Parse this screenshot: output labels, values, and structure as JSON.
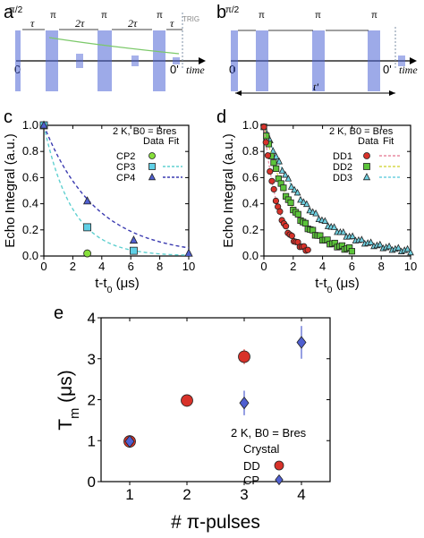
{
  "panels": {
    "a": {
      "letter": "a",
      "pulse_labels": [
        "π/2",
        "π",
        "π",
        "π"
      ],
      "delay_labels": [
        "τ",
        "2τ",
        "2τ",
        "τ"
      ],
      "zero": "0",
      "zero_prime": "0'",
      "time": "time",
      "trig": "TRIG"
    },
    "b": {
      "letter": "b",
      "pulse_labels": [
        "π/2",
        "π",
        "π",
        "π"
      ],
      "zero": "0",
      "zero_prime": "0'",
      "time": "time",
      "tprime": "t'"
    }
  },
  "colors": {
    "pulse": "#4d63d6",
    "cp": "#5fd0d0",
    "cp_fit": "#3a3ab0",
    "dd1": "#d8322a",
    "dd2": "#5cc43a",
    "dd3": "#6fd0e0",
    "green_line": "#7cc96a",
    "trig": "#7e8fa6"
  },
  "chart_data": [
    {
      "id": "c",
      "letter": "c",
      "type": "scatter",
      "xlabel": "t-t0 (μs)",
      "ylabel": "Echo Integral (a.u.)",
      "xlim": [
        0,
        10
      ],
      "ylim": [
        0,
        1.0
      ],
      "xticks": [
        "0",
        "2",
        "4",
        "6",
        "8",
        "10"
      ],
      "yticks": [
        "0.0",
        "0.2",
        "0.4",
        "0.6",
        "0.8",
        "1.0"
      ],
      "condition": "2 K, B0 = Bres",
      "legend_head": [
        "Data",
        "Fit"
      ],
      "series": [
        {
          "name": "CP2",
          "marker": "circle",
          "color": "#86df3a",
          "points": [
            [
              0,
              1.0
            ],
            [
              3.0,
              0.02
            ]
          ]
        },
        {
          "name": "CP3",
          "marker": "square",
          "color": "#5fd0e6",
          "points": [
            [
              0,
              1.0
            ],
            [
              3.0,
              0.22
            ],
            [
              6.2,
              0.04
            ]
          ],
          "fit": {
            "type": "exp",
            "tau": 1.95,
            "color": "#5fd0d0"
          }
        },
        {
          "name": "CP4",
          "marker": "triangle",
          "color": "#4f5fd0",
          "points": [
            [
              0,
              1.0
            ],
            [
              3.0,
              0.42
            ],
            [
              6.2,
              0.12
            ],
            [
              10.0,
              0.02
            ]
          ],
          "fit": {
            "type": "exp",
            "tau": 3.6,
            "color": "#3a3ab0"
          }
        }
      ]
    },
    {
      "id": "d",
      "letter": "d",
      "type": "scatter",
      "xlabel": "t-t0 (μs)",
      "ylabel": "Echo Integral (a.u.)",
      "xlim": [
        0,
        10
      ],
      "ylim": [
        0,
        1.0
      ],
      "xticks": [
        "0",
        "2",
        "4",
        "6",
        "8",
        "10"
      ],
      "yticks": [
        "0.0",
        "0.2",
        "0.4",
        "0.6",
        "0.8",
        "1.0"
      ],
      "condition": "2 K, B0 = Bres",
      "legend_head": [
        "Data",
        "Fit"
      ],
      "series": [
        {
          "name": "DD1",
          "marker": "circle",
          "color": "#d8322a",
          "tau": 0.98,
          "xmax": 3.0,
          "n": 22,
          "fit_color": "#e88aa0"
        },
        {
          "name": "DD2",
          "marker": "square",
          "color": "#5cc43a",
          "tau": 1.98,
          "xmax": 6.0,
          "n": 36,
          "fit_color": "#d6d84a"
        },
        {
          "name": "DD3",
          "marker": "triangle",
          "color": "#6fd0e0",
          "tau": 3.05,
          "xmax": 10.0,
          "n": 48,
          "fit_color": "#6fd0e0"
        }
      ]
    },
    {
      "id": "e",
      "letter": "e",
      "type": "scatter",
      "xlabel": "# π-pulses",
      "ylabel": "Tm (μs)",
      "xlim": [
        0.5,
        4.5
      ],
      "ylim": [
        0,
        4
      ],
      "xticks": [
        "1",
        "2",
        "3",
        "4"
      ],
      "yticks": [
        "0",
        "1",
        "2",
        "3",
        "4"
      ],
      "condition": "2 K, B0 = Bres",
      "legend_title": "Crystal",
      "series": [
        {
          "name": "DD",
          "marker": "circle",
          "color": "#d8322a",
          "points": [
            [
              1,
              0.98,
              0.04
            ],
            [
              2,
              1.98,
              0.12
            ],
            [
              3,
              3.05,
              0.18
            ]
          ]
        },
        {
          "name": "CP",
          "marker": "diamond",
          "color": "#4f5fd0",
          "points": [
            [
              1,
              0.98,
              0.04
            ],
            [
              3,
              1.92,
              0.3
            ],
            [
              4,
              3.4,
              0.4
            ]
          ]
        }
      ]
    }
  ]
}
